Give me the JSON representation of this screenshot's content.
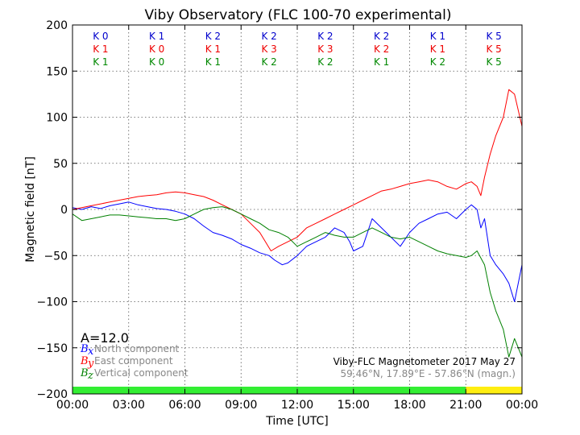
{
  "chart_data": {
    "type": "line",
    "title": "Viby Observatory (FLC 100-70 experimental)",
    "xlabel": "Time [UTC]",
    "ylabel": "Magnetic field [nT]",
    "xlim": [
      0,
      24
    ],
    "ylim": [
      -200,
      200
    ],
    "grid": true,
    "x_ticks": [
      {
        "value": 0,
        "label": "00:00"
      },
      {
        "value": 3,
        "label": "03:00"
      },
      {
        "value": 6,
        "label": "06:00"
      },
      {
        "value": 9,
        "label": "09:00"
      },
      {
        "value": 12,
        "label": "12:00"
      },
      {
        "value": 15,
        "label": "15:00"
      },
      {
        "value": 18,
        "label": "18:00"
      },
      {
        "value": 21,
        "label": "21:00"
      },
      {
        "value": 24,
        "label": "00:00"
      }
    ],
    "y_ticks": [
      {
        "value": -200,
        "label": "−200"
      },
      {
        "value": -150,
        "label": "−150"
      },
      {
        "value": -100,
        "label": "−100"
      },
      {
        "value": -50,
        "label": "−50"
      },
      {
        "value": 0,
        "label": "0"
      },
      {
        "value": 50,
        "label": "50"
      },
      {
        "value": 100,
        "label": "100"
      },
      {
        "value": 150,
        "label": "150"
      },
      {
        "value": 200,
        "label": "200"
      }
    ],
    "k_index_rows": [
      {
        "color": "#0000cc",
        "labels": [
          "K 0",
          "K 1",
          "K 2",
          "K 2",
          "K 2",
          "K 2",
          "K 1",
          "K 5"
        ]
      },
      {
        "color": "#ee0000",
        "labels": [
          "K 1",
          "K 0",
          "K 1",
          "K 3",
          "K 3",
          "K 2",
          "K 1",
          "K 5"
        ]
      },
      {
        "color": "#008800",
        "labels": [
          "K 1",
          "K 0",
          "K 1",
          "K 2",
          "K 2",
          "K 1",
          "K 2",
          "K 5"
        ]
      }
    ],
    "series": [
      {
        "symbol": "B",
        "sub": "x",
        "label": "North component",
        "color": "#0000ff",
        "x": [
          0,
          0.5,
          1,
          1.5,
          2,
          2.5,
          3,
          3.5,
          4,
          4.5,
          5,
          5.5,
          6,
          6.5,
          7,
          7.5,
          8,
          8.5,
          9,
          9.5,
          10,
          10.5,
          10.8,
          11.2,
          11.5,
          12,
          12.5,
          13,
          13.5,
          14,
          14.5,
          14.8,
          15,
          15.5,
          16,
          16.5,
          17,
          17.5,
          18,
          18.5,
          19,
          19.5,
          20,
          20.5,
          21,
          21.3,
          21.6,
          21.8,
          22,
          22.3,
          22.6,
          23,
          23.3,
          23.6,
          24
        ],
        "y": [
          2,
          0,
          3,
          1,
          4,
          6,
          8,
          5,
          3,
          1,
          0,
          -2,
          -5,
          -10,
          -18,
          -25,
          -28,
          -32,
          -38,
          -42,
          -47,
          -50,
          -55,
          -60,
          -58,
          -50,
          -40,
          -35,
          -30,
          -20,
          -25,
          -35,
          -45,
          -40,
          -10,
          -20,
          -30,
          -40,
          -25,
          -15,
          -10,
          -5,
          -3,
          -10,
          0,
          5,
          0,
          -20,
          -10,
          -50,
          -60,
          -70,
          -80,
          -100,
          -60
        ]
      },
      {
        "symbol": "B",
        "sub": "y",
        "label": "East component",
        "color": "#ff0000",
        "x": [
          0,
          0.5,
          1,
          1.5,
          2,
          2.5,
          3,
          3.5,
          4,
          4.5,
          5,
          5.5,
          6,
          6.5,
          7,
          7.5,
          8,
          8.5,
          9,
          9.5,
          10,
          10.3,
          10.6,
          11,
          11.5,
          12,
          12.5,
          13,
          13.5,
          14,
          14.5,
          15,
          15.5,
          16,
          16.5,
          17,
          17.5,
          18,
          18.5,
          19,
          19.5,
          20,
          20.5,
          21,
          21.3,
          21.6,
          21.8,
          22,
          22.3,
          22.6,
          23,
          23.3,
          23.6,
          24
        ],
        "y": [
          0,
          2,
          4,
          6,
          8,
          10,
          12,
          14,
          15,
          16,
          18,
          19,
          18,
          16,
          14,
          10,
          5,
          0,
          -5,
          -15,
          -25,
          -35,
          -45,
          -40,
          -35,
          -30,
          -20,
          -15,
          -10,
          -5,
          0,
          5,
          10,
          15,
          20,
          22,
          25,
          28,
          30,
          32,
          30,
          25,
          22,
          28,
          30,
          25,
          15,
          35,
          60,
          80,
          100,
          130,
          125,
          90
        ]
      },
      {
        "symbol": "B",
        "sub": "z",
        "label": "Vertical component",
        "color": "#008000",
        "x": [
          0,
          0.5,
          1,
          1.5,
          2,
          2.5,
          3,
          3.5,
          4,
          4.5,
          5,
          5.5,
          6,
          6.5,
          7,
          7.5,
          8,
          8.5,
          9,
          9.5,
          10,
          10.5,
          11,
          11.5,
          12,
          12.5,
          13,
          13.5,
          14,
          14.5,
          15,
          15.5,
          16,
          16.5,
          17,
          17.5,
          18,
          18.5,
          19,
          19.5,
          20,
          20.5,
          21,
          21.3,
          21.6,
          22,
          22.3,
          22.6,
          23,
          23.3,
          23.6,
          24
        ],
        "y": [
          -5,
          -12,
          -10,
          -8,
          -6,
          -6,
          -7,
          -8,
          -9,
          -10,
          -10,
          -12,
          -10,
          -5,
          0,
          2,
          3,
          0,
          -5,
          -10,
          -15,
          -22,
          -25,
          -30,
          -40,
          -35,
          -30,
          -25,
          -28,
          -30,
          -30,
          -25,
          -20,
          -25,
          -30,
          -32,
          -30,
          -35,
          -40,
          -45,
          -48,
          -50,
          -52,
          -50,
          -45,
          -60,
          -90,
          -110,
          -130,
          -160,
          -140,
          -160
        ]
      }
    ],
    "index_text": "A=12.0",
    "instrument_text": "Viby-FLC Magnetometer 2017 May 27",
    "coords_text": "59.46°N, 17.89°E - 57.86°N (magn.)",
    "status_bar": [
      {
        "from": 0,
        "to": 21,
        "color": "#33ee33"
      },
      {
        "from": 21,
        "to": 24,
        "color": "#ffee11"
      }
    ]
  }
}
